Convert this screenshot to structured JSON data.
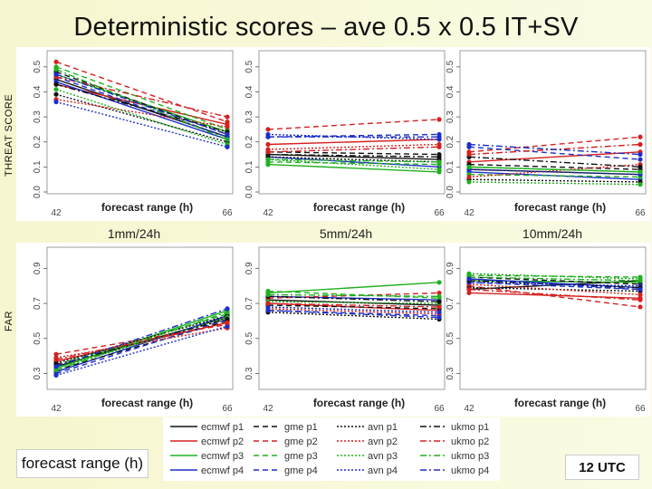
{
  "title": "Deterministic scores – ave 0.5 x 0.5 IT+SV",
  "row_labels": {
    "top": "THREAT SCORE",
    "bottom": "FAR"
  },
  "thresholds": [
    "1mm/24h",
    "5mm/24h",
    "10mm/24h"
  ],
  "xaxis_label": "forecast range (h)",
  "bottom_left_box": "forecast range (h)",
  "time_box": "12 UTC",
  "legend": [
    {
      "label": "ecmwf p1",
      "color": "#111111",
      "dash": ""
    },
    {
      "label": "ecmwf p2",
      "color": "#d62020",
      "dash": ""
    },
    {
      "label": "ecmwf p3",
      "color": "#20b020",
      "dash": ""
    },
    {
      "label": "ecmwf p4",
      "color": "#1c2fc8",
      "dash": ""
    },
    {
      "label": "gme p1",
      "color": "#111111",
      "dash": "6,4"
    },
    {
      "label": "gme p2",
      "color": "#d62020",
      "dash": "6,4"
    },
    {
      "label": "gme p3",
      "color": "#20b020",
      "dash": "6,4"
    },
    {
      "label": "gme p4",
      "color": "#1c2fc8",
      "dash": "6,4"
    },
    {
      "label": "avn p1",
      "color": "#111111",
      "dash": "2,2"
    },
    {
      "label": "avn p2",
      "color": "#d62020",
      "dash": "2,2"
    },
    {
      "label": "avn p3",
      "color": "#20b020",
      "dash": "2,2"
    },
    {
      "label": "avn p4",
      "color": "#1c2fc8",
      "dash": "2,2"
    },
    {
      "label": "ukmo p1",
      "color": "#111111",
      "dash": "7,3,2,3"
    },
    {
      "label": "ukmo p2",
      "color": "#d62020",
      "dash": "7,3,2,3"
    },
    {
      "label": "ukmo p3",
      "color": "#20b020",
      "dash": "7,3,2,3"
    },
    {
      "label": "ukmo p4",
      "color": "#1c2fc8",
      "dash": "7,3,2,3"
    }
  ],
  "chart_data": [
    {
      "type": "line",
      "id": "ts-1mm",
      "ylabel": "THREAT SCORE",
      "xlabel": "forecast range (h)",
      "x": [
        42,
        66
      ],
      "xticks": [
        "42",
        "66"
      ],
      "ylim": [
        0,
        0.55
      ],
      "yticks": [
        "0.0",
        "0.1",
        "0.2",
        "0.3",
        "0.4",
        "0.5"
      ],
      "ytick_values": [
        0,
        0.1,
        0.2,
        0.3,
        0.4,
        0.5
      ],
      "series": [
        {
          "name": "ecmwf p1",
          "values": [
            0.45,
            0.22
          ]
        },
        {
          "name": "ecmwf p2",
          "values": [
            0.43,
            0.27
          ]
        },
        {
          "name": "ecmwf p3",
          "values": [
            0.47,
            0.24
          ]
        },
        {
          "name": "ecmwf p4",
          "values": [
            0.44,
            0.21
          ]
        },
        {
          "name": "gme p1",
          "values": [
            0.48,
            0.23
          ]
        },
        {
          "name": "gme p2",
          "values": [
            0.52,
            0.28
          ]
        },
        {
          "name": "gme p3",
          "values": [
            0.5,
            0.25
          ]
        },
        {
          "name": "gme p4",
          "values": [
            0.46,
            0.22
          ]
        },
        {
          "name": "avn p1",
          "values": [
            0.39,
            0.2
          ]
        },
        {
          "name": "avn p2",
          "values": [
            0.37,
            0.26
          ]
        },
        {
          "name": "avn p3",
          "values": [
            0.41,
            0.19
          ]
        },
        {
          "name": "avn p4",
          "values": [
            0.36,
            0.18
          ]
        },
        {
          "name": "ukmo p1",
          "values": [
            0.43,
            0.24
          ]
        },
        {
          "name": "ukmo p2",
          "values": [
            0.46,
            0.3
          ]
        },
        {
          "name": "ukmo p3",
          "values": [
            0.49,
            0.21
          ]
        },
        {
          "name": "ukmo p4",
          "values": [
            0.47,
            0.23
          ]
        }
      ]
    },
    {
      "type": "line",
      "id": "ts-5mm",
      "ylabel": "THREAT SCORE",
      "xlabel": "forecast range (h)",
      "x": [
        42,
        66
      ],
      "xticks": [
        "42",
        "66"
      ],
      "ylim": [
        0,
        0.55
      ],
      "yticks": [
        "0.0",
        "0.1",
        "0.2",
        "0.3",
        "0.4",
        "0.5"
      ],
      "ytick_values": [
        0,
        0.1,
        0.2,
        0.3,
        0.4,
        0.5
      ],
      "series": [
        {
          "name": "ecmwf p1",
          "values": [
            0.15,
            0.13
          ]
        },
        {
          "name": "ecmwf p2",
          "values": [
            0.19,
            0.21
          ]
        },
        {
          "name": "ecmwf p3",
          "values": [
            0.11,
            0.08
          ]
        },
        {
          "name": "ecmwf p4",
          "values": [
            0.14,
            0.1
          ]
        },
        {
          "name": "gme p1",
          "values": [
            0.16,
            0.15
          ]
        },
        {
          "name": "gme p2",
          "values": [
            0.25,
            0.29
          ]
        },
        {
          "name": "gme p3",
          "values": [
            0.12,
            0.11
          ]
        },
        {
          "name": "gme p4",
          "values": [
            0.22,
            0.23
          ]
        },
        {
          "name": "avn p1",
          "values": [
            0.14,
            0.12
          ]
        },
        {
          "name": "avn p2",
          "values": [
            0.17,
            0.19
          ]
        },
        {
          "name": "avn p3",
          "values": [
            0.13,
            0.09
          ]
        },
        {
          "name": "avn p4",
          "values": [
            0.23,
            0.21
          ]
        },
        {
          "name": "ukmo p1",
          "values": [
            0.15,
            0.14
          ]
        },
        {
          "name": "ukmo p2",
          "values": [
            0.16,
            0.18
          ]
        },
        {
          "name": "ukmo p3",
          "values": [
            0.13,
            0.12
          ]
        },
        {
          "name": "ukmo p4",
          "values": [
            0.22,
            0.22
          ]
        }
      ]
    },
    {
      "type": "line",
      "id": "ts-10mm",
      "ylabel": "THREAT SCORE",
      "xlabel": "forecast range (h)",
      "x": [
        42,
        66
      ],
      "xticks": [
        "42",
        "66"
      ],
      "ylim": [
        0,
        0.55
      ],
      "yticks": [
        "0.0",
        "0.1",
        "0.2",
        "0.3",
        "0.4",
        "0.5"
      ],
      "ytick_values": [
        0,
        0.1,
        0.2,
        0.3,
        0.4,
        0.5
      ],
      "series": [
        {
          "name": "ecmwf p1",
          "values": [
            0.09,
            0.07
          ]
        },
        {
          "name": "ecmwf p2",
          "values": [
            0.12,
            0.16
          ]
        },
        {
          "name": "ecmwf p3",
          "values": [
            0.1,
            0.08
          ]
        },
        {
          "name": "ecmwf p4",
          "values": [
            0.08,
            0.05
          ]
        },
        {
          "name": "gme p1",
          "values": [
            0.11,
            0.09
          ]
        },
        {
          "name": "gme p2",
          "values": [
            0.16,
            0.22
          ]
        },
        {
          "name": "gme p3",
          "values": [
            0.07,
            0.06
          ]
        },
        {
          "name": "gme p4",
          "values": [
            0.18,
            0.13
          ]
        },
        {
          "name": "avn p1",
          "values": [
            0.05,
            0.04
          ]
        },
        {
          "name": "avn p2",
          "values": [
            0.06,
            0.11
          ]
        },
        {
          "name": "avn p3",
          "values": [
            0.04,
            0.03
          ]
        },
        {
          "name": "avn p4",
          "values": [
            0.09,
            0.07
          ]
        },
        {
          "name": "ukmo p1",
          "values": [
            0.14,
            0.1
          ]
        },
        {
          "name": "ukmo p2",
          "values": [
            0.15,
            0.19
          ]
        },
        {
          "name": "ukmo p3",
          "values": [
            0.1,
            0.08
          ]
        },
        {
          "name": "ukmo p4",
          "values": [
            0.19,
            0.15
          ]
        }
      ]
    },
    {
      "type": "line",
      "id": "far-1mm",
      "ylabel": "FAR",
      "xlabel": "forecast range (h)",
      "x": [
        42,
        66
      ],
      "xticks": [
        "42",
        "66"
      ],
      "ylim": [
        0.22,
        1.0
      ],
      "yticks": [
        "0.3",
        "0.5",
        "0.7",
        "0.9"
      ],
      "ytick_values": [
        0.3,
        0.5,
        0.7,
        0.9
      ],
      "series": [
        {
          "name": "ecmwf p1",
          "values": [
            0.34,
            0.62
          ]
        },
        {
          "name": "ecmwf p2",
          "values": [
            0.37,
            0.59
          ]
        },
        {
          "name": "ecmwf p3",
          "values": [
            0.33,
            0.66
          ]
        },
        {
          "name": "ecmwf p4",
          "values": [
            0.31,
            0.63
          ]
        },
        {
          "name": "gme p1",
          "values": [
            0.32,
            0.6
          ]
        },
        {
          "name": "gme p2",
          "values": [
            0.41,
            0.58
          ]
        },
        {
          "name": "gme p3",
          "values": [
            0.35,
            0.64
          ]
        },
        {
          "name": "gme p4",
          "values": [
            0.3,
            0.61
          ]
        },
        {
          "name": "avn p1",
          "values": [
            0.36,
            0.63
          ]
        },
        {
          "name": "avn p2",
          "values": [
            0.39,
            0.56
          ]
        },
        {
          "name": "avn p3",
          "values": [
            0.33,
            0.62
          ]
        },
        {
          "name": "avn p4",
          "values": [
            0.29,
            0.57
          ]
        },
        {
          "name": "ukmo p1",
          "values": [
            0.35,
            0.61
          ]
        },
        {
          "name": "ukmo p2",
          "values": [
            0.38,
            0.59
          ]
        },
        {
          "name": "ukmo p3",
          "values": [
            0.32,
            0.65
          ]
        },
        {
          "name": "ukmo p4",
          "values": [
            0.34,
            0.67
          ]
        }
      ]
    },
    {
      "type": "line",
      "id": "far-5mm",
      "ylabel": "FAR",
      "xlabel": "forecast range (h)",
      "x": [
        42,
        66
      ],
      "xticks": [
        "42",
        "66"
      ],
      "ylim": [
        0.22,
        1.0
      ],
      "yticks": [
        "0.3",
        "0.5",
        "0.7",
        "0.9"
      ],
      "ytick_values": [
        0.3,
        0.5,
        0.7,
        0.9
      ],
      "series": [
        {
          "name": "ecmwf p1",
          "values": [
            0.72,
            0.69
          ]
        },
        {
          "name": "ecmwf p2",
          "values": [
            0.7,
            0.66
          ]
        },
        {
          "name": "ecmwf p3",
          "values": [
            0.76,
            0.82
          ]
        },
        {
          "name": "ecmwf p4",
          "values": [
            0.74,
            0.72
          ]
        },
        {
          "name": "gme p1",
          "values": [
            0.69,
            0.67
          ]
        },
        {
          "name": "gme p2",
          "values": [
            0.73,
            0.76
          ]
        },
        {
          "name": "gme p3",
          "values": [
            0.77,
            0.73
          ]
        },
        {
          "name": "gme p4",
          "values": [
            0.66,
            0.63
          ]
        },
        {
          "name": "avn p1",
          "values": [
            0.65,
            0.61
          ]
        },
        {
          "name": "avn p2",
          "values": [
            0.67,
            0.64
          ]
        },
        {
          "name": "avn p3",
          "values": [
            0.71,
            0.7
          ]
        },
        {
          "name": "avn p4",
          "values": [
            0.68,
            0.65
          ]
        },
        {
          "name": "ukmo p1",
          "values": [
            0.74,
            0.71
          ]
        },
        {
          "name": "ukmo p2",
          "values": [
            0.7,
            0.68
          ]
        },
        {
          "name": "ukmo p3",
          "values": [
            0.75,
            0.74
          ]
        },
        {
          "name": "ukmo p4",
          "values": [
            0.66,
            0.62
          ]
        }
      ]
    },
    {
      "type": "line",
      "id": "far-10mm",
      "ylabel": "FAR",
      "xlabel": "forecast range (h)",
      "x": [
        42,
        66
      ],
      "xticks": [
        "42",
        "66"
      ],
      "ylim": [
        0.22,
        1.0
      ],
      "yticks": [
        "0.3",
        "0.5",
        "0.7",
        "0.9"
      ],
      "ytick_values": [
        0.3,
        0.5,
        0.7,
        0.9
      ],
      "series": [
        {
          "name": "ecmwf p1",
          "values": [
            0.78,
            0.83
          ]
        },
        {
          "name": "ecmwf p2",
          "values": [
            0.76,
            0.73
          ]
        },
        {
          "name": "ecmwf p3",
          "values": [
            0.83,
            0.82
          ]
        },
        {
          "name": "ecmwf p4",
          "values": [
            0.84,
            0.79
          ]
        },
        {
          "name": "gme p1",
          "values": [
            0.85,
            0.81
          ]
        },
        {
          "name": "gme p2",
          "values": [
            0.8,
            0.68
          ]
        },
        {
          "name": "gme p3",
          "values": [
            0.86,
            0.85
          ]
        },
        {
          "name": "gme p4",
          "values": [
            0.82,
            0.78
          ]
        },
        {
          "name": "avn p1",
          "values": [
            0.79,
            0.77
          ]
        },
        {
          "name": "avn p2",
          "values": [
            0.81,
            0.75
          ]
        },
        {
          "name": "avn p3",
          "values": [
            0.87,
            0.84
          ]
        },
        {
          "name": "avn p4",
          "values": [
            0.82,
            0.8
          ]
        },
        {
          "name": "ukmo p1",
          "values": [
            0.83,
            0.79
          ]
        },
        {
          "name": "ukmo p2",
          "values": [
            0.78,
            0.72
          ]
        },
        {
          "name": "ukmo p3",
          "values": [
            0.85,
            0.83
          ]
        },
        {
          "name": "ukmo p4",
          "values": [
            0.84,
            0.78
          ]
        }
      ]
    }
  ]
}
